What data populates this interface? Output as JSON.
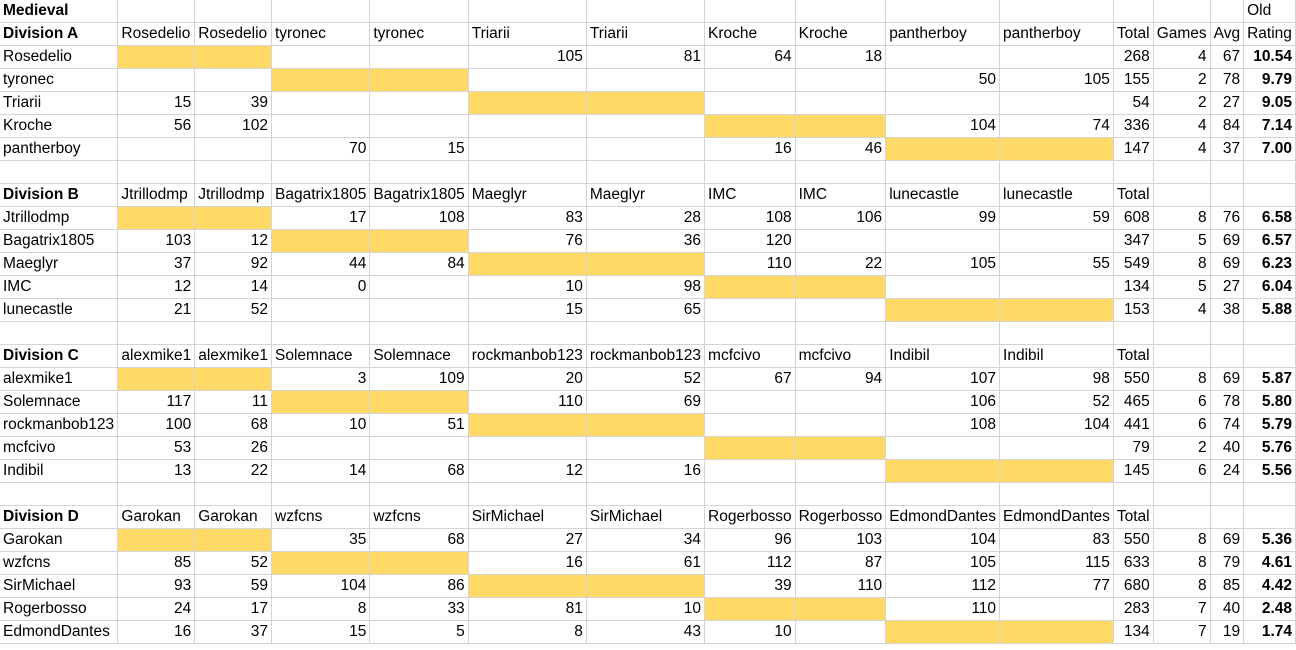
{
  "highlight_color": "#ffd966",
  "sheet": {
    "title": "Medieval",
    "rating_header_top": "Old",
    "divisions": [
      {
        "header": {
          "label": "Division A",
          "cols": [
            "Rosedelio",
            "Rosedelio",
            "tyronec",
            "tyronec",
            "Triarii",
            "Triarii",
            "Kroche",
            "Kroche",
            "pantherboy",
            "pantherboy"
          ],
          "total": "Total",
          "games": "Games",
          "avg": "Avg",
          "rating": "Rating"
        },
        "rows": [
          {
            "name": "Rosedelio",
            "cells": [
              "",
              "",
              "",
              "",
              "105",
              "81",
              "64",
              "18",
              "",
              ""
            ],
            "total": "268",
            "games": "4",
            "avg": "67",
            "rating": "10.54"
          },
          {
            "name": "tyronec",
            "cells": [
              "",
              "",
              "",
              "",
              "",
              "",
              "",
              "",
              "50",
              "105"
            ],
            "total": "155",
            "games": "2",
            "avg": "78",
            "rating": "9.79"
          },
          {
            "name": "Triarii",
            "cells": [
              "15",
              "39",
              "",
              "",
              "",
              "",
              "",
              "",
              "",
              ""
            ],
            "total": "54",
            "games": "2",
            "avg": "27",
            "rating": "9.05"
          },
          {
            "name": "Kroche",
            "cells": [
              "56",
              "102",
              "",
              "",
              "",
              "",
              "",
              "",
              "104",
              "74"
            ],
            "total": "336",
            "games": "4",
            "avg": "84",
            "rating": "7.14"
          },
          {
            "name": "pantherboy",
            "cells": [
              "",
              "",
              "70",
              "15",
              "",
              "",
              "16",
              "46",
              "",
              ""
            ],
            "total": "147",
            "games": "4",
            "avg": "37",
            "rating": "7.00"
          }
        ]
      },
      {
        "header": {
          "label": "Division B",
          "cols": [
            "Jtrillodmp",
            "Jtrillodmp",
            "Bagatrix1805",
            "Bagatrix1805",
            "Maeglyr",
            "Maeglyr",
            "IMC",
            "IMC",
            "lunecastle",
            "lunecastle"
          ],
          "total": "Total",
          "games": "",
          "avg": "",
          "rating": ""
        },
        "rows": [
          {
            "name": "Jtrillodmp",
            "cells": [
              "",
              "",
              "17",
              "108",
              "83",
              "28",
              "108",
              "106",
              "99",
              "59"
            ],
            "total": "608",
            "games": "8",
            "avg": "76",
            "rating": "6.58"
          },
          {
            "name": "Bagatrix1805",
            "cells": [
              "103",
              "12",
              "",
              "",
              "76",
              "36",
              "120",
              "",
              "",
              ""
            ],
            "total": "347",
            "games": "5",
            "avg": "69",
            "rating": "6.57"
          },
          {
            "name": "Maeglyr",
            "cells": [
              "37",
              "92",
              "44",
              "84",
              "",
              "",
              "110",
              "22",
              "105",
              "55"
            ],
            "total": "549",
            "games": "8",
            "avg": "69",
            "rating": "6.23"
          },
          {
            "name": "IMC",
            "cells": [
              "12",
              "14",
              "0",
              "",
              "10",
              "98",
              "",
              "",
              "",
              ""
            ],
            "total": "134",
            "games": "5",
            "avg": "27",
            "rating": "6.04"
          },
          {
            "name": "lunecastle",
            "cells": [
              "21",
              "52",
              "",
              "",
              "15",
              "65",
              "",
              "",
              "",
              ""
            ],
            "total": "153",
            "games": "4",
            "avg": "38",
            "rating": "5.88"
          }
        ]
      },
      {
        "header": {
          "label": "Division C",
          "cols": [
            "alexmike1",
            "alexmike1",
            "Solemnace",
            "Solemnace",
            "rockmanbob123",
            "rockmanbob123",
            "mcfcivo",
            "mcfcivo",
            "Indibil",
            "Indibil"
          ],
          "total": "Total",
          "games": "",
          "avg": "",
          "rating": ""
        },
        "rows": [
          {
            "name": "alexmike1",
            "cells": [
              "",
              "",
              "3",
              "109",
              "20",
              "52",
              "67",
              "94",
              "107",
              "98"
            ],
            "total": "550",
            "games": "8",
            "avg": "69",
            "rating": "5.87"
          },
          {
            "name": "Solemnace",
            "cells": [
              "117",
              "11",
              "",
              "",
              "110",
              "69",
              "",
              "",
              "106",
              "52"
            ],
            "total": "465",
            "games": "6",
            "avg": "78",
            "rating": "5.80"
          },
          {
            "name": "rockmanbob123",
            "cells": [
              "100",
              "68",
              "10",
              "51",
              "",
              "",
              "",
              "",
              "108",
              "104"
            ],
            "total": "441",
            "games": "6",
            "avg": "74",
            "rating": "5.79"
          },
          {
            "name": "mcfcivo",
            "cells": [
              "53",
              "26",
              "",
              "",
              "",
              "",
              "",
              "",
              "",
              ""
            ],
            "total": "79",
            "games": "2",
            "avg": "40",
            "rating": "5.76"
          },
          {
            "name": "Indibil",
            "cells": [
              "13",
              "22",
              "14",
              "68",
              "12",
              "16",
              "",
              "",
              "",
              ""
            ],
            "total": "145",
            "games": "6",
            "avg": "24",
            "rating": "5.56"
          }
        ]
      },
      {
        "header": {
          "label": "Division D",
          "cols": [
            "Garokan",
            "Garokan",
            "wzfcns",
            "wzfcns",
            "SirMichael",
            "SirMichael",
            "Rogerbosso",
            "Rogerbosso",
            "EdmondDantes",
            "EdmondDantes"
          ],
          "total": "Total",
          "games": "",
          "avg": "",
          "rating": ""
        },
        "rows": [
          {
            "name": "Garokan",
            "cells": [
              "",
              "",
              "35",
              "68",
              "27",
              "34",
              "96",
              "103",
              "104",
              "83"
            ],
            "total": "550",
            "games": "8",
            "avg": "69",
            "rating": "5.36"
          },
          {
            "name": "wzfcns",
            "cells": [
              "85",
              "52",
              "",
              "",
              "16",
              "61",
              "112",
              "87",
              "105",
              "115"
            ],
            "total": "633",
            "games": "8",
            "avg": "79",
            "rating": "4.61"
          },
          {
            "name": "SirMichael",
            "cells": [
              "93",
              "59",
              "104",
              "86",
              "",
              "",
              "39",
              "110",
              "112",
              "77"
            ],
            "total": "680",
            "games": "8",
            "avg": "85",
            "rating": "4.42"
          },
          {
            "name": "Rogerbosso",
            "cells": [
              "24",
              "17",
              "8",
              "33",
              "81",
              "10",
              "",
              "",
              "110",
              ""
            ],
            "total": "283",
            "games": "7",
            "avg": "40",
            "rating": "2.48"
          },
          {
            "name": "EdmondDantes",
            "cells": [
              "16",
              "37",
              "15",
              "5",
              "8",
              "43",
              "10",
              "",
              "",
              ""
            ],
            "total": "134",
            "games": "7",
            "avg": "19",
            "rating": "1.74"
          }
        ]
      }
    ]
  }
}
